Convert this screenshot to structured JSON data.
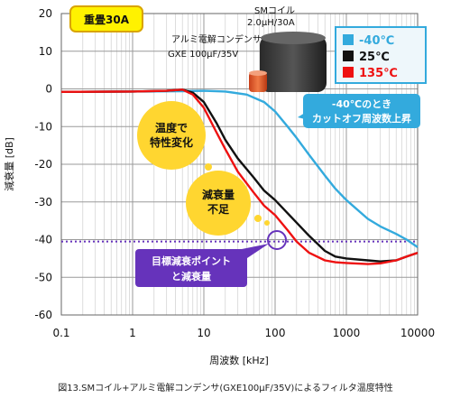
{
  "chart_data": {
    "type": "line",
    "x_scale": "log",
    "xlim": [
      0.1,
      10000
    ],
    "ylim": [
      -60,
      20
    ],
    "xlabel": "周波数 [kHz]",
    "ylabel": "減衰量 [dB]",
    "x_ticks": [
      "0.1",
      "1",
      "10",
      "100",
      "1000",
      "10000"
    ],
    "y_ticks": [
      "20",
      "10",
      "0",
      "-10",
      "-20",
      "-30",
      "-40",
      "-50",
      "-60"
    ],
    "grid": true,
    "legend_position": "top-right",
    "series": [
      {
        "name": "-40℃",
        "color": "#33aadd",
        "x": [
          0.1,
          1,
          5,
          10,
          20,
          40,
          70,
          100,
          150,
          200,
          300,
          500,
          700,
          1000,
          2000,
          3000,
          5000,
          7000,
          10000
        ],
        "y": [
          -0.8,
          -0.7,
          -0.6,
          -0.5,
          -0.7,
          -1.5,
          -3.5,
          -6,
          -10,
          -13,
          -17.5,
          -23,
          -26.5,
          -29.5,
          -34.5,
          -36.5,
          -38.5,
          -40,
          -42
        ]
      },
      {
        "name": "25℃",
        "color": "#111111",
        "x": [
          0.1,
          1,
          3,
          5,
          7,
          10,
          15,
          20,
          30,
          50,
          70,
          100,
          150,
          200,
          300,
          500,
          700,
          1000,
          2000,
          3000,
          5000,
          7000,
          10000
        ],
        "y": [
          -0.8,
          -0.7,
          -0.5,
          -0.2,
          -1,
          -3.5,
          -9,
          -13.5,
          -18.5,
          -23.5,
          -27,
          -29.5,
          -33,
          -35.5,
          -39,
          -43,
          -44.5,
          -45,
          -45.5,
          -45.8,
          -45.5,
          -44.5,
          -43.5
        ]
      },
      {
        "name": "135℃",
        "color": "#ee1111",
        "x": [
          0.1,
          1,
          3,
          5,
          7,
          10,
          15,
          20,
          30,
          50,
          70,
          100,
          150,
          200,
          300,
          500,
          700,
          1000,
          2000,
          3000,
          5000,
          7000,
          10000
        ],
        "y": [
          -0.8,
          -0.7,
          -0.5,
          -0.2,
          -1.5,
          -5,
          -11.5,
          -16,
          -22,
          -27.5,
          -31,
          -33.5,
          -37.5,
          -40.5,
          -43.5,
          -45.5,
          -46,
          -46.2,
          -46.5,
          -46.3,
          -45.5,
          -44.5,
          -43.5
        ]
      }
    ],
    "reference_line": {
      "y": -40.5,
      "color": "#6633bb",
      "style": "dotted"
    }
  },
  "annotations": {
    "badge": "重畳30A",
    "sm_coil_line1": "SMコイル",
    "sm_coil_line2": "2.0μH/30A",
    "capacitor_line1": "アルミ電解コンデンサ",
    "capacitor_line2": "GXE 100μF/35V",
    "bubble1_line1": "温度で",
    "bubble1_line2": "特性変化",
    "bubble2_line1": "減衰量",
    "bubble2_line2": "不足",
    "cutoff_line1": "-40℃のとき",
    "cutoff_line2": "カットオフ周波数上昇",
    "target_line1": "目標減衰ポイント",
    "target_line2": "と減衰量"
  },
  "caption": "図13.SMコイル+アルミ電解コンデンサ(GXE100μF/35V)によるフィルタ温度特性"
}
